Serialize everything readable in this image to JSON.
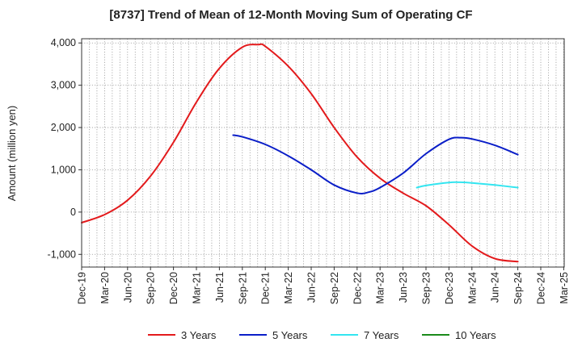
{
  "chart_data": {
    "type": "line",
    "title": "[8737]  Trend of Mean of 12-Month Moving Sum of Operating CF",
    "xlabel": "",
    "ylabel": "Amount (million yen)",
    "ylim": [
      -1300,
      4100
    ],
    "yticks": [
      -1000,
      0,
      1000,
      2000,
      3000,
      4000
    ],
    "ytick_labels": [
      "-1,000",
      "0",
      "1,000",
      "2,000",
      "3,000",
      "4,000"
    ],
    "x_categories": [
      "Dec-19",
      "Mar-20",
      "Jun-20",
      "Sep-20",
      "Dec-20",
      "Mar-21",
      "Jun-21",
      "Sep-21",
      "Dec-21",
      "Mar-22",
      "Jun-22",
      "Sep-22",
      "Dec-22",
      "Mar-23",
      "Jun-23",
      "Sep-23",
      "Dec-23",
      "Mar-24",
      "Jun-24",
      "Sep-24",
      "Dec-24",
      "Mar-25"
    ],
    "grid": true,
    "legend_position": "bottom",
    "series": [
      {
        "name": "3 Years",
        "color": "#e31a1c",
        "points": [
          [
            0,
            -250
          ],
          [
            1,
            -60
          ],
          [
            2,
            280
          ],
          [
            3,
            850
          ],
          [
            4,
            1650
          ],
          [
            5,
            2600
          ],
          [
            6,
            3400
          ],
          [
            7,
            3900
          ],
          [
            7.7,
            3960
          ],
          [
            8,
            3920
          ],
          [
            9,
            3450
          ],
          [
            10,
            2800
          ],
          [
            11,
            2000
          ],
          [
            12,
            1300
          ],
          [
            13,
            800
          ],
          [
            14,
            450
          ],
          [
            15,
            150
          ],
          [
            16,
            -300
          ],
          [
            17,
            -800
          ],
          [
            18,
            -1100
          ],
          [
            19,
            -1170
          ]
        ]
      },
      {
        "name": "5 Years",
        "color": "#0a1ec8",
        "points": [
          [
            6.6,
            1820
          ],
          [
            7,
            1780
          ],
          [
            8,
            1600
          ],
          [
            9,
            1330
          ],
          [
            10,
            1000
          ],
          [
            11,
            640
          ],
          [
            12,
            450
          ],
          [
            12.5,
            470
          ],
          [
            13,
            580
          ],
          [
            14,
            920
          ],
          [
            15,
            1380
          ],
          [
            16,
            1720
          ],
          [
            16.5,
            1760
          ],
          [
            17,
            1730
          ],
          [
            18,
            1580
          ],
          [
            19,
            1360
          ]
        ]
      },
      {
        "name": "7 Years",
        "color": "#33e5f0",
        "points": [
          [
            14.6,
            580
          ],
          [
            15,
            630
          ],
          [
            16,
            700
          ],
          [
            16.5,
            705
          ],
          [
            17,
            690
          ],
          [
            18,
            640
          ],
          [
            19,
            580
          ]
        ]
      },
      {
        "name": "10 Years",
        "color": "#1a8a1a",
        "points": []
      }
    ]
  }
}
